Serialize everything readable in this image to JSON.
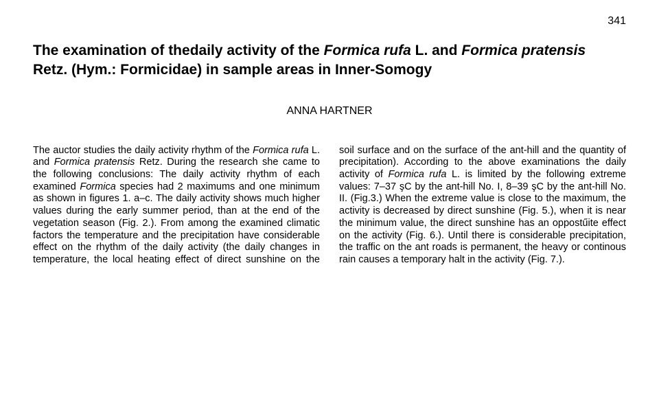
{
  "page_number": "341",
  "title_pre": "The examination of thedaily activity of the ",
  "title_it1": "Formica rufa",
  "title_mid1": " L. and ",
  "title_it2": "Formica pratensis",
  "title_mid2": " Retz. (Hym.: Formicidae) in sample areas in Inner-Somogy",
  "author": "ANNA HARTNER",
  "p1a": "The auctor studies the daily activity rhythm of the ",
  "p1_it1": "Formica rufa",
  "p1b": " L. and ",
  "p1_it2": "Formica pratensis",
  "p1c": " Retz. During the research she came to the following conclusions:",
  "p2a": "The daily activity rhythm of each examined ",
  "p2_it": "Formica",
  "p2b": " species had 2 maximums and one minimum as shown in figures 1. a–c.",
  "p3": "The daily activity shows much higher values during the early summer period, than at the end of the vegetation season (Fig. 2.).",
  "p4": "From among the examined climatic factors the temperature and the precipitation have considerable effect on the rhythm of the daily activity (the daily changes in temperature, the local heating effect of direct sunshine on the soil surface and on the surface of the ant-hill and the quantity of precipitation).",
  "p5a": "According to the above examinations the daily activity of ",
  "p5_it": "Formica rufa",
  "p5b": " L. is limited by the following extreme values: 7–37 şC by the ant-hill No. I, 8–39 şC by the ant-hill No. II. (Fig.3.)",
  "p6": "When the extreme value is close to the maximum, the activity is decreased by direct sunshine (Fig. 5.), when it is near the minimum value, the direct sunshine has an oppostűite effect on the activity (Fig. 6.).",
  "p7": "Until there is considerable precipitation, the traffic on the ant roads is permanent, the heavy or continous rain causes a temporary halt in the activity (Fig. 7.)."
}
